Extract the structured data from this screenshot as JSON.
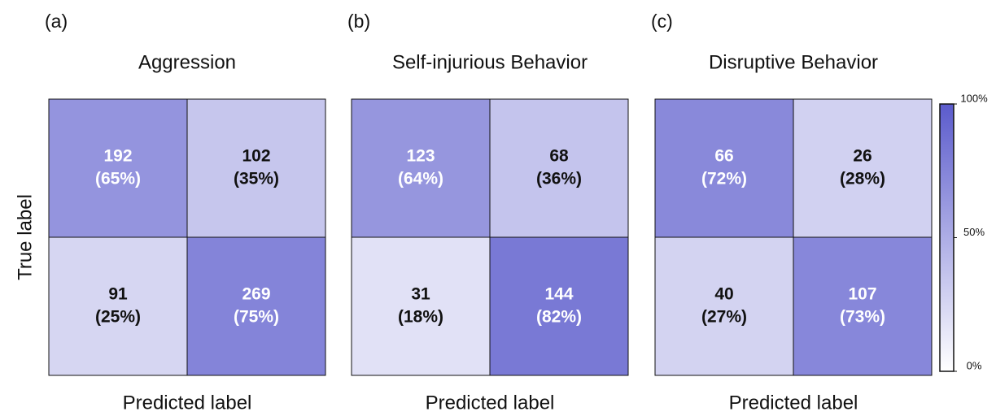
{
  "chart_data": [
    {
      "type": "heatmap",
      "panel_label": "(a)",
      "title": "Aggression",
      "xlabel": "Predicted label",
      "ylabel": "True label",
      "counts": [
        [
          192,
          102
        ],
        [
          91,
          269
        ]
      ],
      "values": [
        [
          65,
          35
        ],
        [
          25,
          75
        ]
      ],
      "value_labels": [
        [
          "(65%)",
          "(35%)"
        ],
        [
          "(25%)",
          "(75%)"
        ]
      ],
      "clim": [
        0,
        100
      ],
      "colormap": [
        "#ffffff",
        "#5b5bcc"
      ]
    },
    {
      "type": "heatmap",
      "panel_label": "(b)",
      "title": "Self-injurious Behavior",
      "xlabel": "Predicted label",
      "counts": [
        [
          123,
          68
        ],
        [
          31,
          144
        ]
      ],
      "values": [
        [
          64,
          36
        ],
        [
          18,
          82
        ]
      ],
      "value_labels": [
        [
          "(64%)",
          "(36%)"
        ],
        [
          "(18%)",
          "(82%)"
        ]
      ],
      "clim": [
        0,
        100
      ],
      "colormap": [
        "#ffffff",
        "#5b5bcc"
      ]
    },
    {
      "type": "heatmap",
      "panel_label": "(c)",
      "title": "Disruptive Behavior",
      "xlabel": "Predicted label",
      "counts": [
        [
          66,
          26
        ],
        [
          40,
          107
        ]
      ],
      "values": [
        [
          72,
          28
        ],
        [
          27,
          73
        ]
      ],
      "value_labels": [
        [
          "(72%)",
          "(28%)"
        ],
        [
          "(27%)",
          "(73%)"
        ]
      ],
      "clim": [
        0,
        100
      ],
      "colormap": [
        "#ffffff",
        "#5b5bcc"
      ],
      "cticks": [
        {
          "value": 100,
          "label": "100%"
        },
        {
          "value": 50,
          "label": "50%"
        },
        {
          "value": 0,
          "label": "0%"
        }
      ]
    }
  ]
}
